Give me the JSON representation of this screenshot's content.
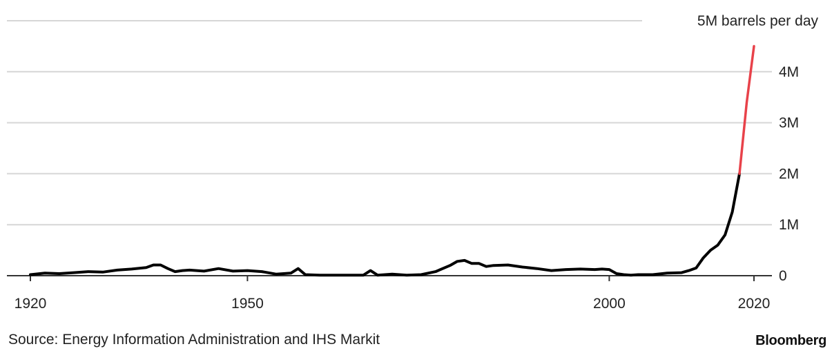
{
  "chart_data": {
    "type": "line",
    "title": "",
    "xlabel": "",
    "ylabel": "",
    "unit_label": "5M barrels per day",
    "x_ticks": [
      1920,
      1950,
      2000,
      2020
    ],
    "x_tick_labels": [
      "1920",
      "1950",
      "2000",
      "2020"
    ],
    "y_ticks": [
      0,
      1,
      2,
      3,
      4,
      5
    ],
    "y_tick_labels": [
      "0",
      "1M",
      "2M",
      "3M",
      "4M",
      "5M barrels per day"
    ],
    "xlim": [
      1920,
      2020
    ],
    "ylim": [
      0,
      5
    ],
    "grid": true,
    "series": [
      {
        "color": "#000000",
        "x": [
          1920,
          1922,
          1924,
          1926,
          1928,
          1930,
          1932,
          1934,
          1936,
          1937,
          1938,
          1939,
          1940,
          1941,
          1942,
          1943,
          1944,
          1946,
          1948,
          1950,
          1952,
          1954,
          1956,
          1957,
          1958,
          1960,
          1962,
          1964,
          1966,
          1967,
          1968,
          1970,
          1972,
          1974,
          1976,
          1978,
          1979,
          1980,
          1981,
          1982,
          1983,
          1984,
          1986,
          1988,
          1990,
          1992,
          1994,
          1996,
          1998,
          1999,
          2000,
          2001,
          2002,
          2003,
          2004,
          2005,
          2006,
          2008,
          2010,
          2011,
          2012,
          2013,
          2014,
          2015,
          2016,
          2017,
          2018
        ],
        "y": [
          0.02,
          0.05,
          0.04,
          0.06,
          0.08,
          0.07,
          0.11,
          0.13,
          0.16,
          0.21,
          0.21,
          0.14,
          0.08,
          0.1,
          0.11,
          0.1,
          0.09,
          0.14,
          0.09,
          0.1,
          0.08,
          0.03,
          0.05,
          0.14,
          0.02,
          0.01,
          0.01,
          0.01,
          0.01,
          0.1,
          0.01,
          0.03,
          0.01,
          0.02,
          0.08,
          0.2,
          0.28,
          0.3,
          0.24,
          0.24,
          0.18,
          0.2,
          0.21,
          0.17,
          0.14,
          0.1,
          0.12,
          0.13,
          0.12,
          0.13,
          0.12,
          0.04,
          0.02,
          0.01,
          0.02,
          0.02,
          0.02,
          0.05,
          0.06,
          0.1,
          0.15,
          0.35,
          0.5,
          0.6,
          0.8,
          1.25,
          2.0
        ]
      },
      {
        "color": "#e8424a",
        "x": [
          2018,
          2019,
          2020
        ],
        "y": [
          2.0,
          3.4,
          4.5
        ]
      }
    ]
  },
  "footer": {
    "source": "Source: Energy Information Administration and IHS Markit",
    "brand": "Bloomberg"
  }
}
